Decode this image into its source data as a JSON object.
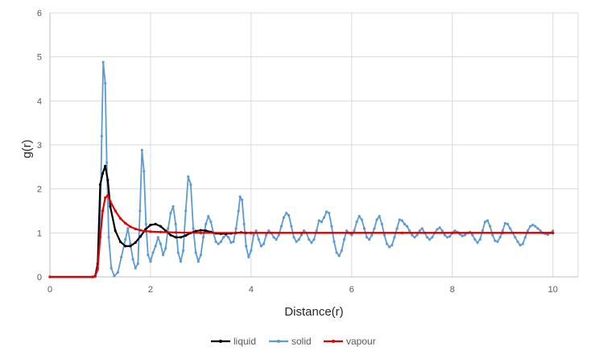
{
  "chart_data": {
    "type": "line",
    "title": "",
    "xlabel": "Distance(r)",
    "ylabel": "g(r)",
    "xlim": [
      0,
      10.5
    ],
    "ylim": [
      0,
      6
    ],
    "xticks": [
      0,
      2,
      4,
      6,
      8,
      10
    ],
    "yticks": [
      0,
      1,
      2,
      3,
      4,
      5,
      6
    ],
    "grid": true,
    "legend_position": "bottom",
    "series": [
      {
        "name": "liquid",
        "color": "#000000",
        "points": [
          [
            0,
            0
          ],
          [
            0.85,
            0
          ],
          [
            0.9,
            0.02
          ],
          [
            0.95,
            0.3
          ],
          [
            1.0,
            2.1
          ],
          [
            1.05,
            2.35
          ],
          [
            1.1,
            2.52
          ],
          [
            1.15,
            2.2
          ],
          [
            1.2,
            1.6
          ],
          [
            1.3,
            1.05
          ],
          [
            1.4,
            0.8
          ],
          [
            1.5,
            0.7
          ],
          [
            1.6,
            0.7
          ],
          [
            1.7,
            0.78
          ],
          [
            1.8,
            0.92
          ],
          [
            1.9,
            1.08
          ],
          [
            2.0,
            1.18
          ],
          [
            2.1,
            1.2
          ],
          [
            2.2,
            1.15
          ],
          [
            2.3,
            1.05
          ],
          [
            2.4,
            0.95
          ],
          [
            2.5,
            0.9
          ],
          [
            2.6,
            0.9
          ],
          [
            2.7,
            0.94
          ],
          [
            2.8,
            1.0
          ],
          [
            2.9,
            1.04
          ],
          [
            3.0,
            1.06
          ],
          [
            3.1,
            1.05
          ],
          [
            3.2,
            1.02
          ],
          [
            3.3,
            0.99
          ],
          [
            3.4,
            0.98
          ],
          [
            3.5,
            0.98
          ],
          [
            3.6,
            0.99
          ],
          [
            3.7,
            1.0
          ],
          [
            3.8,
            1.01
          ],
          [
            3.9,
            1.0
          ],
          [
            4.0,
            1.0
          ],
          [
            10.0,
            1.0
          ]
        ]
      },
      {
        "name": "solid",
        "color": "#5B9BD5",
        "points": [
          [
            0,
            0
          ],
          [
            0.9,
            0
          ],
          [
            0.95,
            0.15
          ],
          [
            1.0,
            1.2
          ],
          [
            1.03,
            3.2
          ],
          [
            1.06,
            4.88
          ],
          [
            1.1,
            4.4
          ],
          [
            1.13,
            2.6
          ],
          [
            1.17,
            0.9
          ],
          [
            1.22,
            0.2
          ],
          [
            1.28,
            0.02
          ],
          [
            1.35,
            0.1
          ],
          [
            1.42,
            0.45
          ],
          [
            1.5,
            0.85
          ],
          [
            1.55,
            1.1
          ],
          [
            1.6,
            0.75
          ],
          [
            1.65,
            0.4
          ],
          [
            1.7,
            0.2
          ],
          [
            1.75,
            0.3
          ],
          [
            1.79,
            1.5
          ],
          [
            1.83,
            2.88
          ],
          [
            1.87,
            2.4
          ],
          [
            1.91,
            1.2
          ],
          [
            1.95,
            0.5
          ],
          [
            2.0,
            0.35
          ],
          [
            2.05,
            0.55
          ],
          [
            2.1,
            0.7
          ],
          [
            2.15,
            0.9
          ],
          [
            2.2,
            0.75
          ],
          [
            2.25,
            0.5
          ],
          [
            2.3,
            0.65
          ],
          [
            2.35,
            1.1
          ],
          [
            2.4,
            1.45
          ],
          [
            2.45,
            1.6
          ],
          [
            2.5,
            1.2
          ],
          [
            2.55,
            0.55
          ],
          [
            2.6,
            0.35
          ],
          [
            2.65,
            0.6
          ],
          [
            2.7,
            1.5
          ],
          [
            2.75,
            2.28
          ],
          [
            2.8,
            2.1
          ],
          [
            2.85,
            1.1
          ],
          [
            2.9,
            0.55
          ],
          [
            2.95,
            0.35
          ],
          [
            3.0,
            0.5
          ],
          [
            3.05,
            0.9
          ],
          [
            3.1,
            1.2
          ],
          [
            3.15,
            1.38
          ],
          [
            3.2,
            1.25
          ],
          [
            3.25,
            1.0
          ],
          [
            3.3,
            0.8
          ],
          [
            3.35,
            0.75
          ],
          [
            3.4,
            0.8
          ],
          [
            3.45,
            0.9
          ],
          [
            3.5,
            0.95
          ],
          [
            3.55,
            0.9
          ],
          [
            3.6,
            0.78
          ],
          [
            3.65,
            0.8
          ],
          [
            3.7,
            1.1
          ],
          [
            3.75,
            1.5
          ],
          [
            3.78,
            1.82
          ],
          [
            3.82,
            1.75
          ],
          [
            3.86,
            1.2
          ],
          [
            3.9,
            0.7
          ],
          [
            3.95,
            0.45
          ],
          [
            4.0,
            0.6
          ],
          [
            4.05,
            0.95
          ],
          [
            4.1,
            1.05
          ],
          [
            4.15,
            0.85
          ],
          [
            4.2,
            0.7
          ],
          [
            4.25,
            0.75
          ],
          [
            4.3,
            0.95
          ],
          [
            4.35,
            1.05
          ],
          [
            4.4,
            1.0
          ],
          [
            4.45,
            0.9
          ],
          [
            4.5,
            0.85
          ],
          [
            4.55,
            0.95
          ],
          [
            4.6,
            1.15
          ],
          [
            4.65,
            1.35
          ],
          [
            4.7,
            1.45
          ],
          [
            4.75,
            1.4
          ],
          [
            4.8,
            1.15
          ],
          [
            4.85,
            0.9
          ],
          [
            4.9,
            0.8
          ],
          [
            4.95,
            0.85
          ],
          [
            5.0,
            0.95
          ],
          [
            5.05,
            1.05
          ],
          [
            5.1,
            1.0
          ],
          [
            5.15,
            0.85
          ],
          [
            5.2,
            0.78
          ],
          [
            5.25,
            0.85
          ],
          [
            5.3,
            1.05
          ],
          [
            5.35,
            1.28
          ],
          [
            5.4,
            1.25
          ],
          [
            5.45,
            1.35
          ],
          [
            5.5,
            1.48
          ],
          [
            5.55,
            1.45
          ],
          [
            5.6,
            1.15
          ],
          [
            5.65,
            0.8
          ],
          [
            5.7,
            0.55
          ],
          [
            5.75,
            0.48
          ],
          [
            5.8,
            0.6
          ],
          [
            5.85,
            0.85
          ],
          [
            5.9,
            1.05
          ],
          [
            5.95,
            1.0
          ],
          [
            6.0,
            0.95
          ],
          [
            6.05,
            1.05
          ],
          [
            6.1,
            1.25
          ],
          [
            6.15,
            1.38
          ],
          [
            6.2,
            1.3
          ],
          [
            6.25,
            1.1
          ],
          [
            6.3,
            0.9
          ],
          [
            6.35,
            0.85
          ],
          [
            6.4,
            0.95
          ],
          [
            6.45,
            1.1
          ],
          [
            6.5,
            1.3
          ],
          [
            6.55,
            1.38
          ],
          [
            6.6,
            1.2
          ],
          [
            6.65,
            0.95
          ],
          [
            6.7,
            0.75
          ],
          [
            6.75,
            0.68
          ],
          [
            6.8,
            0.72
          ],
          [
            6.85,
            0.9
          ],
          [
            6.9,
            1.1
          ],
          [
            6.95,
            1.3
          ],
          [
            7.0,
            1.28
          ],
          [
            7.05,
            1.2
          ],
          [
            7.1,
            1.15
          ],
          [
            7.15,
            1.05
          ],
          [
            7.2,
            0.95
          ],
          [
            7.25,
            0.9
          ],
          [
            7.3,
            0.95
          ],
          [
            7.35,
            1.05
          ],
          [
            7.4,
            1.1
          ],
          [
            7.45,
            1.0
          ],
          [
            7.5,
            0.9
          ],
          [
            7.55,
            0.85
          ],
          [
            7.6,
            0.9
          ],
          [
            7.65,
            1.0
          ],
          [
            7.7,
            1.08
          ],
          [
            7.75,
            1.12
          ],
          [
            7.8,
            1.05
          ],
          [
            7.85,
            0.95
          ],
          [
            7.9,
            0.9
          ],
          [
            7.95,
            0.92
          ],
          [
            8.0,
            1.0
          ],
          [
            8.05,
            1.05
          ],
          [
            8.1,
            1.02
          ],
          [
            8.15,
            0.97
          ],
          [
            8.2,
            0.93
          ],
          [
            8.25,
            0.95
          ],
          [
            8.3,
            1.0
          ],
          [
            8.35,
            1.02
          ],
          [
            8.4,
            0.95
          ],
          [
            8.45,
            0.85
          ],
          [
            8.5,
            0.78
          ],
          [
            8.55,
            0.85
          ],
          [
            8.6,
            1.05
          ],
          [
            8.65,
            1.25
          ],
          [
            8.7,
            1.28
          ],
          [
            8.75,
            1.15
          ],
          [
            8.8,
            0.95
          ],
          [
            8.85,
            0.82
          ],
          [
            8.9,
            0.8
          ],
          [
            8.95,
            0.9
          ],
          [
            9.0,
            1.05
          ],
          [
            9.05,
            1.22
          ],
          [
            9.1,
            1.2
          ],
          [
            9.15,
            1.1
          ],
          [
            9.2,
            1.0
          ],
          [
            9.25,
            0.9
          ],
          [
            9.3,
            0.8
          ],
          [
            9.35,
            0.72
          ],
          [
            9.4,
            0.75
          ],
          [
            9.45,
            0.9
          ],
          [
            9.5,
            1.05
          ],
          [
            9.55,
            1.15
          ],
          [
            9.6,
            1.18
          ],
          [
            9.65,
            1.15
          ],
          [
            9.7,
            1.1
          ],
          [
            9.75,
            1.05
          ],
          [
            9.8,
            1.0
          ],
          [
            9.85,
            0.98
          ],
          [
            9.9,
            0.96
          ],
          [
            9.95,
            1.0
          ],
          [
            10.0,
            1.05
          ]
        ]
      },
      {
        "name": "vapour",
        "color": "#E00000",
        "points": [
          [
            0,
            0
          ],
          [
            0.85,
            0
          ],
          [
            0.9,
            0.02
          ],
          [
            0.95,
            0.2
          ],
          [
            1.0,
            0.9
          ],
          [
            1.05,
            1.5
          ],
          [
            1.1,
            1.8
          ],
          [
            1.15,
            1.85
          ],
          [
            1.2,
            1.72
          ],
          [
            1.3,
            1.5
          ],
          [
            1.4,
            1.33
          ],
          [
            1.5,
            1.22
          ],
          [
            1.6,
            1.14
          ],
          [
            1.7,
            1.09
          ],
          [
            1.8,
            1.06
          ],
          [
            1.9,
            1.04
          ],
          [
            2.0,
            1.03
          ],
          [
            2.2,
            1.02
          ],
          [
            2.5,
            1.01
          ],
          [
            3.0,
            1.0
          ],
          [
            4.0,
            1.0
          ],
          [
            5.0,
            1.0
          ],
          [
            6.0,
            1.0
          ],
          [
            7.0,
            1.0
          ],
          [
            8.0,
            1.0
          ],
          [
            9.0,
            1.0
          ],
          [
            10.0,
            1.0
          ]
        ]
      }
    ]
  }
}
